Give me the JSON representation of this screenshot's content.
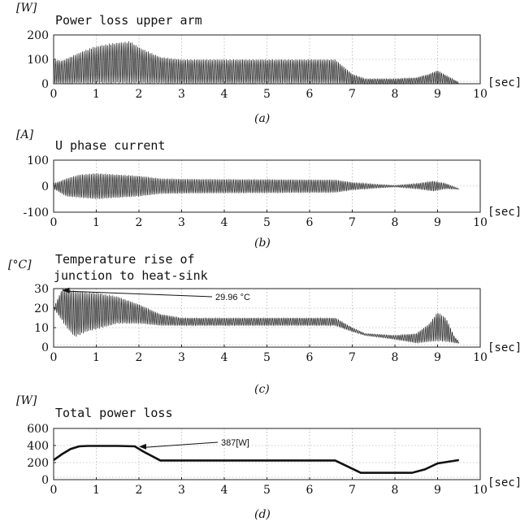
{
  "chart_data": [
    {
      "type": "line",
      "title": "Power loss upper arm",
      "ylabel": "[W]",
      "xlabel": "[sec]",
      "caption": "(a)",
      "xlim": [
        0,
        10
      ],
      "ylim": [
        0,
        200
      ],
      "xticks": [
        "0",
        "1",
        "2",
        "3",
        "4",
        "5",
        "6",
        "7",
        "8",
        "9",
        "10"
      ],
      "yticks": [
        "0",
        "100",
        "200"
      ],
      "grid": true,
      "oscillating": true,
      "envelope_upper": [
        [
          0.0,
          100
        ],
        [
          0.2,
          95
        ],
        [
          0.5,
          120
        ],
        [
          0.9,
          150
        ],
        [
          1.3,
          165
        ],
        [
          1.8,
          175
        ],
        [
          2.0,
          150
        ],
        [
          2.5,
          110
        ],
        [
          3.0,
          100
        ],
        [
          6.6,
          100
        ],
        [
          7.0,
          40
        ],
        [
          7.3,
          20
        ],
        [
          8.0,
          20
        ],
        [
          8.5,
          25
        ],
        [
          8.8,
          40
        ],
        [
          9.0,
          55
        ],
        [
          9.2,
          35
        ],
        [
          9.5,
          5
        ]
      ],
      "envelope_lower": [
        [
          0.0,
          0
        ],
        [
          9.5,
          0
        ]
      ]
    },
    {
      "type": "line",
      "title": "U phase current",
      "ylabel": "[A]",
      "xlabel": "[sec]",
      "caption": "(b)",
      "xlim": [
        0,
        10
      ],
      "ylim": [
        -100,
        100
      ],
      "xticks": [
        "0",
        "1",
        "2",
        "3",
        "4",
        "5",
        "6",
        "7",
        "8",
        "9",
        "10"
      ],
      "yticks": [
        "-100",
        "0",
        "100"
      ],
      "grid": true,
      "oscillating": true,
      "envelope_upper": [
        [
          0.0,
          10
        ],
        [
          0.3,
          30
        ],
        [
          0.6,
          45
        ],
        [
          1.0,
          50
        ],
        [
          1.5,
          45
        ],
        [
          2.0,
          40
        ],
        [
          2.5,
          30
        ],
        [
          3.0,
          28
        ],
        [
          6.6,
          25
        ],
        [
          7.0,
          15
        ],
        [
          7.5,
          8
        ],
        [
          8.0,
          3
        ],
        [
          8.5,
          10
        ],
        [
          8.9,
          20
        ],
        [
          9.2,
          10
        ],
        [
          9.5,
          -10
        ]
      ],
      "envelope_lower": [
        [
          0.0,
          -10
        ],
        [
          0.3,
          -40
        ],
        [
          0.6,
          -45
        ],
        [
          1.0,
          -50
        ],
        [
          1.5,
          -45
        ],
        [
          2.0,
          -40
        ],
        [
          2.5,
          -30
        ],
        [
          3.0,
          -28
        ],
        [
          6.6,
          -25
        ],
        [
          7.0,
          -15
        ],
        [
          7.5,
          -8
        ],
        [
          8.0,
          -3
        ],
        [
          8.5,
          -10
        ],
        [
          8.9,
          -20
        ],
        [
          9.2,
          -10
        ],
        [
          9.5,
          -12
        ]
      ]
    },
    {
      "type": "line",
      "title": "Temperature rise of",
      "title_line2": "junction to heat-sink",
      "ylabel": "[°C]",
      "xlabel": "[sec]",
      "caption": "(c)",
      "xlim": [
        0,
        10
      ],
      "ylim": [
        0,
        30
      ],
      "xticks": [
        "0",
        "1",
        "2",
        "3",
        "4",
        "5",
        "6",
        "7",
        "8",
        "9",
        "10"
      ],
      "yticks": [
        "0",
        "10",
        "20",
        "30"
      ],
      "grid": true,
      "oscillating": true,
      "annotation": {
        "text": "29.96 °C",
        "x": 0.2,
        "y": 29.96
      },
      "envelope_upper": [
        [
          0.0,
          20
        ],
        [
          0.2,
          29.96
        ],
        [
          0.5,
          29
        ],
        [
          1.0,
          28
        ],
        [
          1.5,
          26
        ],
        [
          2.0,
          22
        ],
        [
          2.5,
          17
        ],
        [
          3.0,
          15
        ],
        [
          6.6,
          15
        ],
        [
          7.0,
          10
        ],
        [
          7.3,
          7
        ],
        [
          8.0,
          6
        ],
        [
          8.5,
          7
        ],
        [
          8.8,
          12
        ],
        [
          9.0,
          18
        ],
        [
          9.2,
          15
        ],
        [
          9.4,
          5
        ],
        [
          9.5,
          3
        ]
      ],
      "envelope_lower": [
        [
          0.0,
          20
        ],
        [
          0.3,
          10
        ],
        [
          0.5,
          5
        ],
        [
          0.8,
          8
        ],
        [
          1.0,
          9
        ],
        [
          1.5,
          12
        ],
        [
          2.0,
          12
        ],
        [
          2.5,
          11
        ],
        [
          3.0,
          11
        ],
        [
          6.6,
          11
        ],
        [
          7.0,
          8
        ],
        [
          7.3,
          6
        ],
        [
          8.0,
          4
        ],
        [
          8.5,
          2
        ],
        [
          9.0,
          3
        ],
        [
          9.5,
          2
        ]
      ]
    },
    {
      "type": "line",
      "title": "Total power loss",
      "ylabel": "[W]",
      "xlabel": "[sec]",
      "caption": "(d)",
      "xlim": [
        0,
        10
      ],
      "ylim": [
        0,
        600
      ],
      "xticks": [
        "0",
        "1",
        "2",
        "3",
        "4",
        "5",
        "6",
        "7",
        "8",
        "9",
        "10"
      ],
      "yticks": [
        "0",
        "200",
        "400",
        "600"
      ],
      "grid": true,
      "oscillating": false,
      "annotation": {
        "text": "387[W]",
        "x": 2.0,
        "y": 387
      },
      "x": [
        0.0,
        0.2,
        0.4,
        0.6,
        0.8,
        1.0,
        1.5,
        1.9,
        2.1,
        2.5,
        3.0,
        6.6,
        7.2,
        7.6,
        8.4,
        8.7,
        9.0,
        9.5
      ],
      "y": [
        230,
        300,
        360,
        390,
        395,
        395,
        395,
        390,
        330,
        225,
        225,
        225,
        80,
        80,
        80,
        120,
        190,
        230
      ]
    }
  ]
}
